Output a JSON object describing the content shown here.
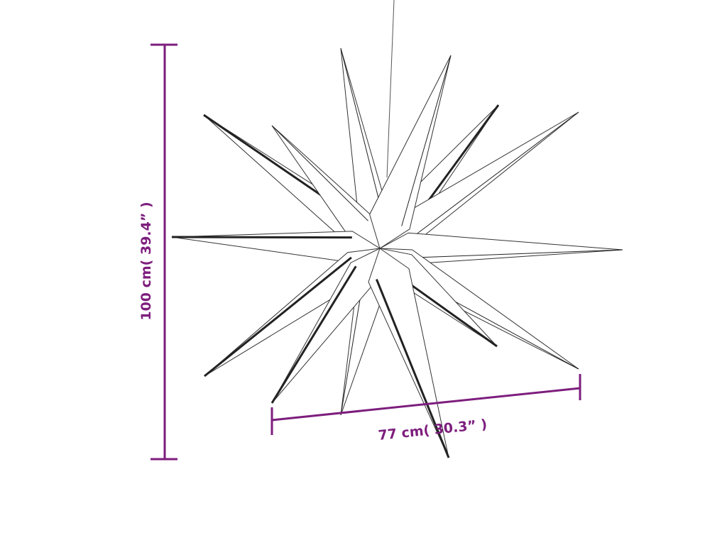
{
  "diagram": {
    "subject": "star",
    "dimension_color": "#7d1e7d",
    "height_label": "100 cm( 39.4” )",
    "width_label": "77 cm( 30.3” )"
  }
}
